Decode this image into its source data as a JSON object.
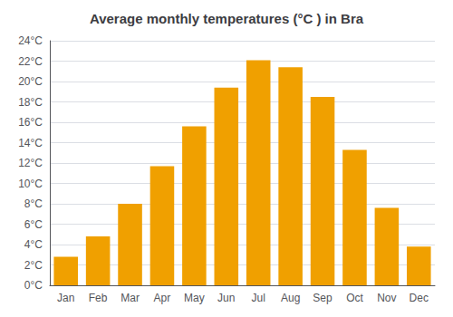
{
  "chart_data": {
    "type": "bar",
    "title": "Average monthly temperatures (°C ) in Bra",
    "categories": [
      "Jan",
      "Feb",
      "Mar",
      "Apr",
      "May",
      "Jun",
      "Jul",
      "Aug",
      "Sep",
      "Oct",
      "Nov",
      "Dec"
    ],
    "values": [
      2.8,
      4.8,
      8.0,
      11.7,
      15.6,
      19.4,
      22.1,
      21.4,
      18.5,
      13.3,
      7.6,
      3.8
    ],
    "color": "#F0A000",
    "ylim": [
      0,
      24
    ],
    "yticks": [
      {
        "value": 0,
        "label": "0°C"
      },
      {
        "value": 2,
        "label": "2°C"
      },
      {
        "value": 4,
        "label": "4°C"
      },
      {
        "value": 6,
        "label": "6°C"
      },
      {
        "value": 8,
        "label": "8°C"
      },
      {
        "value": 10,
        "label": "10°C"
      },
      {
        "value": 12,
        "label": "12°C"
      },
      {
        "value": 14,
        "label": "14°C"
      },
      {
        "value": 16,
        "label": "16°C"
      },
      {
        "value": 18,
        "label": "18°C"
      },
      {
        "value": 20,
        "label": "20°C"
      },
      {
        "value": 22,
        "label": "22°C"
      },
      {
        "value": 24,
        "label": "24°C"
      }
    ],
    "grid": true
  }
}
